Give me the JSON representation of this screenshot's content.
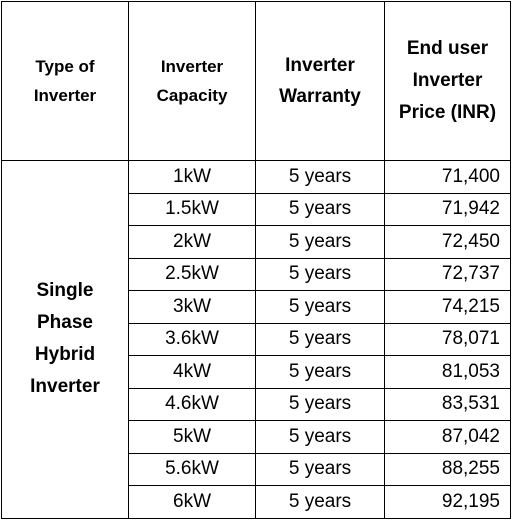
{
  "table": {
    "headers": {
      "type_of_inverter": [
        "Type of",
        "Inverter"
      ],
      "inverter_capacity": [
        "Inverter",
        "Capacity"
      ],
      "inverter_warranty": [
        "Inverter",
        "Warranty"
      ],
      "end_user_price": [
        "End user",
        "Inverter",
        "Price (INR)"
      ]
    },
    "type_label": [
      "Single",
      "Phase",
      "Hybrid",
      "Inverter"
    ],
    "rows": [
      {
        "capacity": "1kW",
        "warranty": "5 years",
        "price": "71,400"
      },
      {
        "capacity": "1.5kW",
        "warranty": "5 years",
        "price": "71,942"
      },
      {
        "capacity": "2kW",
        "warranty": "5 years",
        "price": "72,450"
      },
      {
        "capacity": "2.5kW",
        "warranty": "5 years",
        "price": "72,737"
      },
      {
        "capacity": "3kW",
        "warranty": "5 years",
        "price": "74,215"
      },
      {
        "capacity": "3.6kW",
        "warranty": "5 years",
        "price": "78,071"
      },
      {
        "capacity": "4kW",
        "warranty": "5 years",
        "price": "81,053"
      },
      {
        "capacity": "4.6kW",
        "warranty": "5 years",
        "price": "83,531"
      },
      {
        "capacity": "5kW",
        "warranty": "5 years",
        "price": "87,042"
      },
      {
        "capacity": "5.6kW",
        "warranty": "5 years",
        "price": "88,255"
      },
      {
        "capacity": "6kW",
        "warranty": "5 years",
        "price": "92,195"
      }
    ]
  }
}
